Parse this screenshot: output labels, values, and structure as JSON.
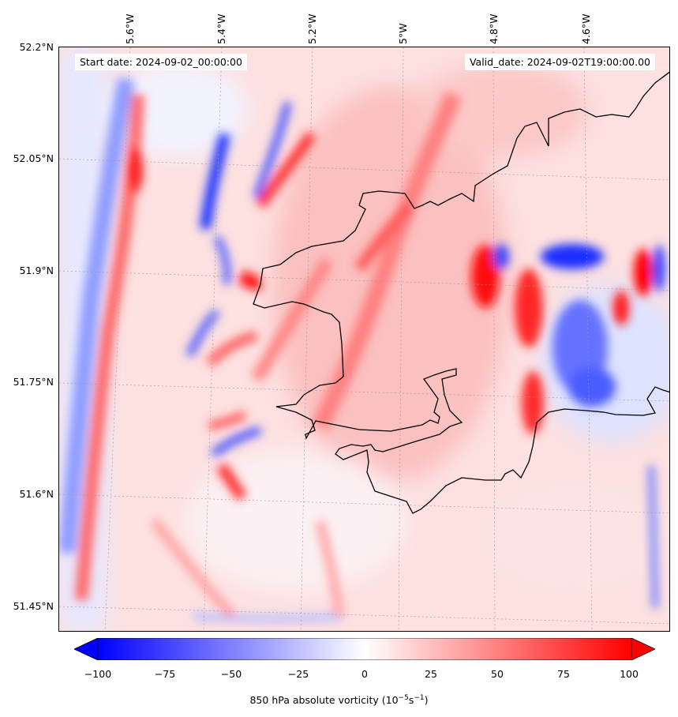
{
  "map": {
    "start_date": "Start date: 2024-09-02_00:00:00",
    "valid_date": "Valid_date: 2024-09-02T19:00:00.00",
    "lon_labels": [
      "5.6°W",
      "5.4°W",
      "5.2°W",
      "5°W",
      "4.8°W",
      "4.6°W"
    ],
    "lat_labels": [
      "52.2°N",
      "52.05°N",
      "51.9°N",
      "51.75°N",
      "51.6°N",
      "51.45°N"
    ],
    "field": "850 hPa absolute vorticity",
    "colors": {
      "negative": "#0000ff",
      "positive": "#ff0000",
      "neutral": "#ffffff",
      "coastline": "#000000"
    }
  },
  "colorbar": {
    "ticks": [
      "−100",
      "−75",
      "−50",
      "−25",
      "0",
      "25",
      "50",
      "75",
      "100"
    ],
    "label_prefix": "850 hPa absolute vorticity (10",
    "label_exp1": "−5",
    "label_mid": "s",
    "label_exp2": "−1",
    "label_suffix": ")",
    "min": -100,
    "max": 100,
    "extend": "both",
    "cmap": "bwr"
  }
}
